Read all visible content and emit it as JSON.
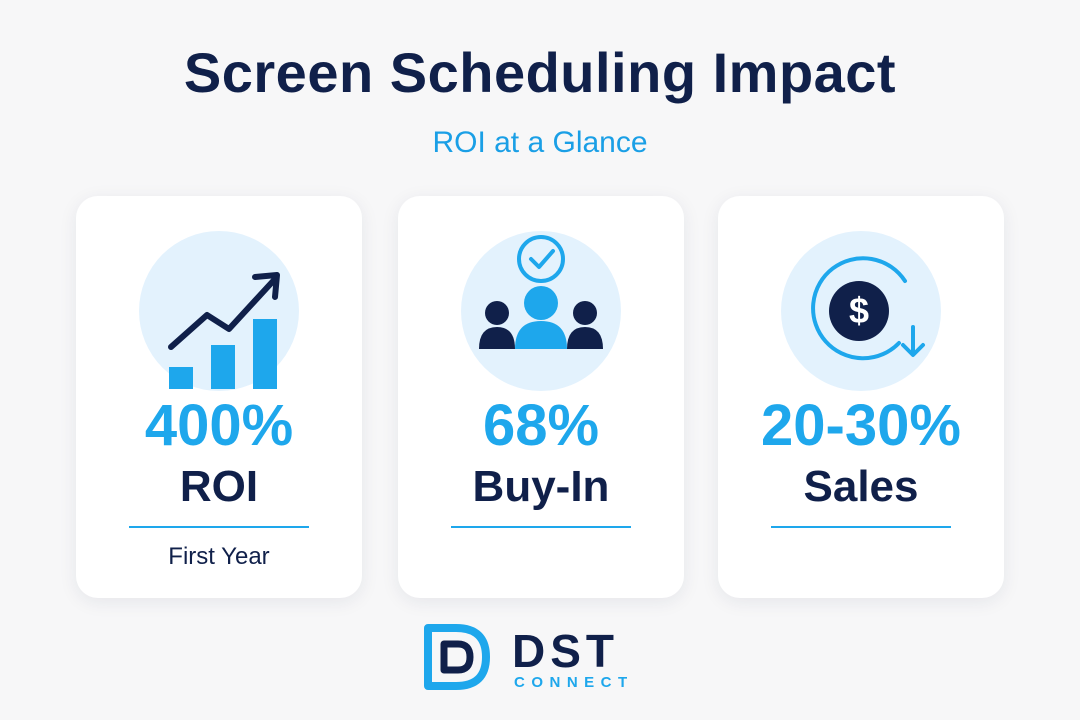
{
  "header": {
    "title": "Screen Scheduling Impact",
    "subtitle": "ROI at a Glance"
  },
  "cards": [
    {
      "icon": "growth-chart-icon",
      "value": "400%",
      "metric": "ROI",
      "note": "First Year"
    },
    {
      "icon": "team-check-icon",
      "value": "68%",
      "metric": "Buy-In",
      "note": ""
    },
    {
      "icon": "dollar-down-icon",
      "value": "20-30%",
      "metric": "Sales",
      "note": ""
    }
  ],
  "logo": {
    "name": "DST",
    "tagline": "CONNECT"
  },
  "colors": {
    "navy": "#10204a",
    "accent": "#1ea7ec",
    "icon_bg": "#e3f2fd",
    "background": "#f7f7f8"
  }
}
